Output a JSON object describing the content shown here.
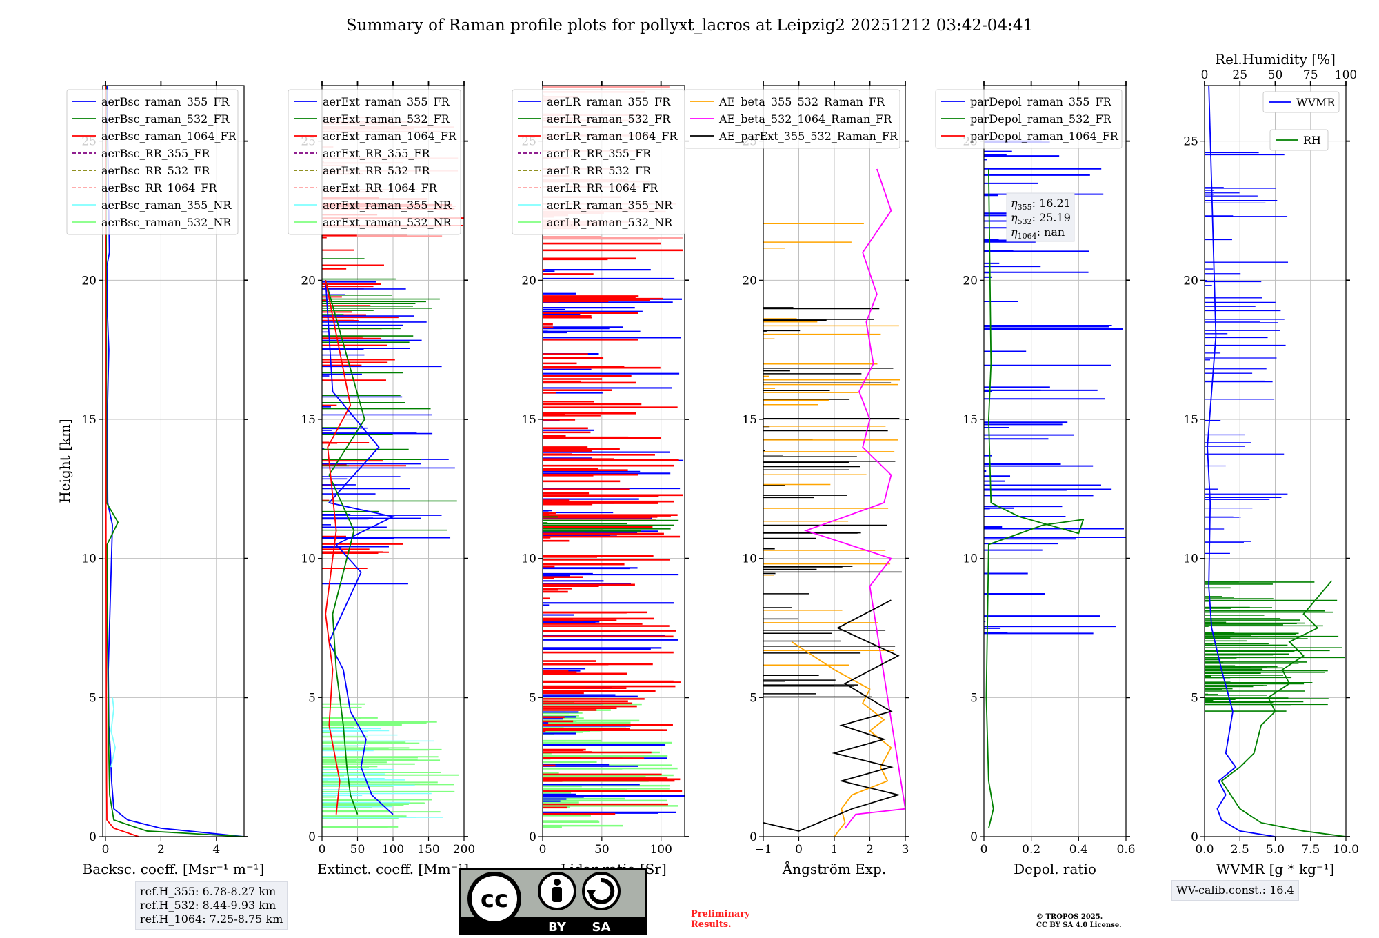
{
  "figure": {
    "title": "Summary of Raman profile plots for pollyxt_lacros at Leipzig2 20251212 03:42-04:41"
  },
  "chart_data": [
    {
      "type": "line",
      "id": "bsc",
      "xlabel": "Backsc. coeff. [Msr⁻¹ m⁻¹]",
      "ylabel": "Height [km]",
      "xlim": [
        -0.1,
        5
      ],
      "ylim": [
        0,
        27
      ],
      "xticks": [
        0,
        2,
        4
      ],
      "yticks": [
        0,
        5,
        10,
        15,
        20,
        25
      ],
      "legend": [
        "aerBsc_raman_355_FR",
        "aerBsc_raman_532_FR",
        "aerBsc_raman_1064_FR",
        "aerBsc_RR_355_FR",
        "aerBsc_RR_532_FR",
        "aerBsc_RR_1064_FR",
        "aerBsc_raman_355_NR",
        "aerBsc_raman_532_NR"
      ],
      "series": [
        {
          "name": "aerBsc_raman_355_FR",
          "x": [
            5,
            2.0,
            0.8,
            0.3,
            0.22,
            0.18,
            0.12,
            0.1,
            0.25,
            0.08,
            0.06,
            0.12,
            0.06,
            0.05,
            0.14,
            0.05
          ],
          "y": [
            0,
            0.3,
            0.6,
            1.0,
            2.0,
            3.0,
            4.0,
            6.0,
            11.2,
            12.0,
            15.0,
            17.5,
            19.0,
            20.5,
            21.0,
            27.0
          ]
        },
        {
          "name": "aerBsc_raman_532_FR",
          "x": [
            5,
            1.5,
            0.3,
            0.15,
            0.12,
            0.1,
            0.07,
            0.06,
            0.45,
            0.04,
            0.03,
            0.02
          ],
          "y": [
            0,
            0.2,
            0.6,
            1.5,
            3.0,
            5.0,
            7.0,
            10.5,
            11.3,
            12.0,
            18.0,
            27.0
          ]
        },
        {
          "name": "aerBsc_raman_1064_FR",
          "x": [
            1.2,
            0.3,
            0.05,
            0.04,
            0.03,
            0.02,
            0.01,
            0.0
          ],
          "y": [
            0,
            0.3,
            0.6,
            2.0,
            6.0,
            10.0,
            16.0,
            27.0
          ]
        },
        {
          "name": "aerBsc_raman_355_NR",
          "x": [
            0.2,
            0.35,
            0.2,
            0.3,
            0.25
          ],
          "y": [
            2.5,
            3.2,
            3.8,
            4.6,
            5.0
          ]
        }
      ]
    },
    {
      "type": "line",
      "id": "ext",
      "xlabel": "Extinct. coeff. [Mm⁻¹]",
      "xlim": [
        0,
        200
      ],
      "ylim": [
        0,
        27
      ],
      "xticks": [
        0,
        50,
        100,
        150,
        200
      ],
      "yticks": [
        0,
        5,
        10,
        15,
        20,
        25
      ],
      "legend": [
        "aerExt_raman_355_FR",
        "aerExt_raman_532_FR",
        "aerExt_raman_1064_FR",
        "aerExt_RR_355_FR",
        "aerExt_RR_532_FR",
        "aerExt_RR_1064_FR",
        "aerExt_raman_355_NR",
        "aerExt_raman_532_NR"
      ],
      "series": [
        {
          "name": "aerExt_raman_355_FR",
          "x": [
            100,
            70,
            55,
            62,
            40,
            30,
            10,
            55,
            20,
            100,
            10,
            80,
            15,
            5
          ],
          "y": [
            0.8,
            1.5,
            2.5,
            3.5,
            4.5,
            6.0,
            7.0,
            9.5,
            10.5,
            11.5,
            12.0,
            14.0,
            16.0,
            20.0
          ]
        },
        {
          "name": "aerExt_raman_532_FR",
          "x": [
            50,
            40,
            35,
            30,
            20,
            15,
            45,
            10,
            60,
            5
          ],
          "y": [
            0.8,
            1.5,
            2.5,
            4.0,
            6.0,
            8.0,
            11.0,
            13.0,
            15.0,
            20.0
          ]
        },
        {
          "name": "aerExt_raman_1064_FR",
          "x": [
            20,
            25,
            10,
            15,
            5,
            20,
            8,
            40,
            5
          ],
          "y": [
            0.8,
            2.0,
            4.0,
            6.0,
            8.0,
            11.0,
            14.0,
            15.5,
            20.0
          ]
        }
      ]
    },
    {
      "type": "line",
      "id": "lr",
      "xlabel": "Lidar ratio [Sr]",
      "xlim": [
        0,
        120
      ],
      "ylim": [
        0,
        27
      ],
      "xticks": [
        0,
        50,
        100
      ],
      "yticks": [
        0,
        5,
        10,
        15,
        20,
        25
      ],
      "legend": [
        "aerLR_raman_355_FR",
        "aerLR_raman_532_FR",
        "aerLR_raman_1064_FR",
        "aerLR_RR_355_FR",
        "aerLR_RR_532_FR",
        "aerLR_RR_1064_FR",
        "aerLR_raman_355_NR",
        "aerLR_raman_532_NR"
      ]
    },
    {
      "type": "line",
      "id": "ae",
      "xlabel": "Ångström Exp.",
      "xlim": [
        -1,
        3
      ],
      "ylim": [
        0,
        27
      ],
      "xticks": [
        -1,
        0,
        1,
        2,
        3
      ],
      "yticks": [
        0,
        5,
        10,
        15,
        20,
        25
      ],
      "legend": [
        "AE_beta_355_532_Raman_FR",
        "AE_beta_532_1064_Raman_FR",
        "AE_parExt_355_532_Raman_FR"
      ],
      "series": [
        {
          "name": "AE_beta_355_532_Raman_FR",
          "x": [
            1.0,
            1.3,
            1.2,
            1.5,
            2.5,
            2.3,
            2.6,
            2.0,
            2.4,
            1.8,
            2.0,
            1.0,
            -0.2
          ],
          "y": [
            0.0,
            0.5,
            1.0,
            1.5,
            2.0,
            2.5,
            3.2,
            3.8,
            4.2,
            4.8,
            5.3,
            6.0,
            7.0
          ]
        },
        {
          "name": "AE_beta_532_1064_Raman_FR",
          "x": [
            1.3,
            1.6,
            3.0,
            2.0,
            2.6,
            0.2,
            2.4,
            2.6,
            1.8,
            2.0,
            1.7,
            2.1,
            1.9,
            2.2,
            1.8,
            2.6,
            2.2
          ],
          "y": [
            0.3,
            0.8,
            1.0,
            9.0,
            10.0,
            11.0,
            12.0,
            13.0,
            14.0,
            15.0,
            16.0,
            17.0,
            18.5,
            19.5,
            21.0,
            22.5,
            24.0
          ]
        },
        {
          "name": "AE_parExt_355_532_Raman_FR",
          "x": [
            -1,
            0,
            1.5,
            2.8,
            1.2,
            2.6,
            1.0,
            2.4,
            1.2,
            2.6,
            1.3,
            2.8,
            1.1,
            2.6
          ],
          "y": [
            0.5,
            0.2,
            1.0,
            1.5,
            2.0,
            2.5,
            3.0,
            3.5,
            4.0,
            4.5,
            5.5,
            6.5,
            7.5,
            8.5
          ]
        }
      ]
    },
    {
      "type": "line",
      "id": "depol",
      "xlabel": "Depol. ratio",
      "xlim": [
        0,
        0.6
      ],
      "ylim": [
        0,
        27
      ],
      "xticks": [
        0.0,
        0.2,
        0.4,
        0.6
      ],
      "yticks": [
        0,
        5,
        10,
        15,
        20,
        25
      ],
      "legend": [
        "parDepol_raman_355_FR",
        "parDepol_raman_532_FR",
        "parDepol_raman_1064_FR"
      ],
      "series": [
        {
          "name": "parDepol_raman_532_FR",
          "x": [
            0.02,
            0.04,
            0.02,
            0.01,
            0.02,
            0.25,
            0.42,
            0.4,
            0.15,
            0.03,
            0.02,
            0.03,
            0.02
          ],
          "y": [
            0.3,
            1.0,
            2.0,
            5.0,
            10.5,
            11.2,
            11.4,
            10.9,
            11.5,
            12.0,
            15.0,
            17.0,
            24.0
          ]
        }
      ],
      "annotation": {
        "eta355": "16.21",
        "eta532": "25.19",
        "eta1064": "nan"
      }
    },
    {
      "type": "line",
      "id": "wv",
      "xlabel": "WVMR",
      "xlabel_math": "[g * kg⁻¹]",
      "xlim": [
        0,
        10
      ],
      "ylim": [
        0,
        27
      ],
      "xticks": [
        "0.0",
        "2.5",
        "5.0",
        "7.5",
        "10.0"
      ],
      "yticks": [
        0,
        5,
        10,
        15,
        20,
        25
      ],
      "top_xlabel": "Rel.Humidity [%]",
      "top_xticks": [
        "0",
        "25",
        "50",
        "75",
        "100"
      ],
      "legend": [
        "WVMR",
        "RH"
      ],
      "series": [
        {
          "name": "WVMR",
          "x": [
            5.0,
            2.5,
            1.2,
            0.9,
            1.5,
            1.0,
            2.2,
            1.5,
            2.0,
            1.2,
            0.5,
            0.3,
            0.4,
            0.2,
            0.5,
            0.8,
            0.3
          ],
          "y": [
            0.0,
            0.2,
            0.6,
            1.0,
            1.5,
            2.0,
            2.5,
            3.0,
            4.5,
            6.0,
            7.5,
            9.0,
            12.0,
            14.0,
            16.0,
            18.0,
            27.0
          ]
        },
        {
          "name": "RH",
          "x": [
            10,
            7.0,
            4.0,
            2.5,
            1.2,
            2.5,
            3.5,
            4.0,
            5.0,
            4.5,
            6.0,
            5.5,
            7.0,
            6.0,
            8.0,
            7.0,
            9.0
          ],
          "y": [
            0.0,
            0.2,
            0.5,
            1.0,
            2.0,
            2.5,
            3.0,
            4.0,
            4.5,
            5.0,
            5.5,
            6.0,
            6.5,
            7.0,
            7.5,
            8.0,
            9.2
          ]
        }
      ]
    }
  ],
  "boxes": {
    "ref_lines": [
      "ref.H_355: 6.78-8.27 km",
      "ref.H_532: 8.44-9.93 km",
      "ref.H_1064: 7.25-8.75 km"
    ],
    "wv_calib": "WV-calib.const.: 16.4",
    "preliminary": [
      "Preliminary",
      "Results."
    ],
    "copyright": [
      "© TROPOS 2025.",
      "CC BY SA 4.0 License."
    ]
  },
  "license_badge": {
    "cc": "cc",
    "by": "BY",
    "sa": "SA"
  },
  "colors": {
    "c355": "#0000ff",
    "c532": "#008000",
    "c1064": "#ff0000",
    "rr355": "#800080",
    "rr532": "#808000",
    "rr1064": "#ffa0a0",
    "nr355": "#80ffff",
    "nr532": "#80ff80",
    "ae1": "#ffa500",
    "ae2": "#ff00ff",
    "ae3": "#000000"
  }
}
